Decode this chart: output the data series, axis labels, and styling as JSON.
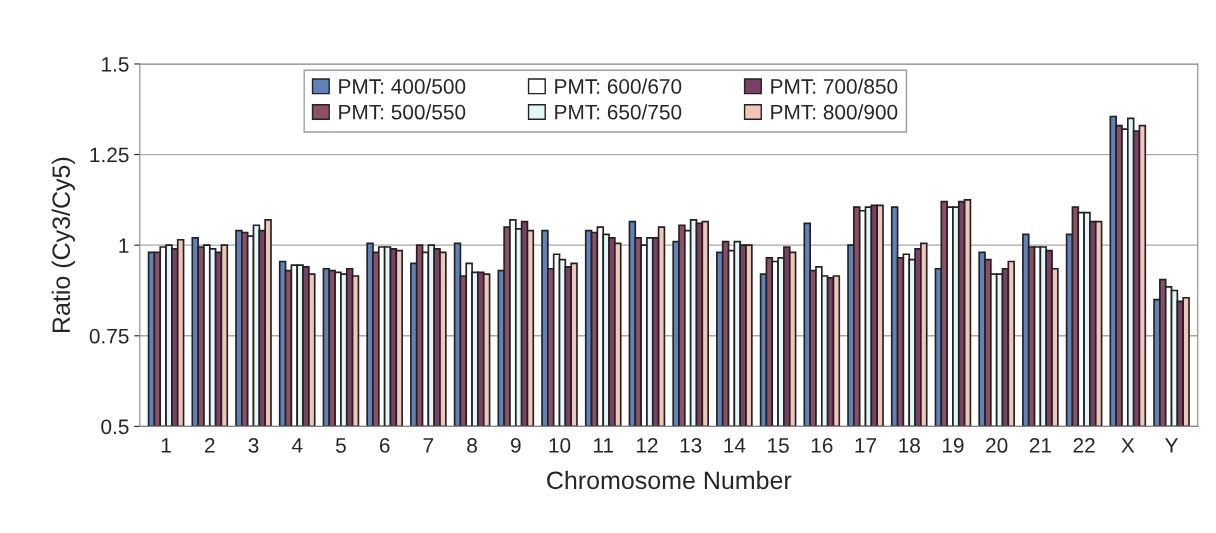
{
  "chart_data": {
    "type": "bar",
    "xlabel": "Chromosome Number",
    "ylabel": "Ratio (Cy3/Cy5)",
    "categories": [
      "1",
      "2",
      "3",
      "4",
      "5",
      "6",
      "7",
      "8",
      "9",
      "10",
      "11",
      "12",
      "13",
      "14",
      "15",
      "16",
      "17",
      "18",
      "19",
      "20",
      "21",
      "22",
      "X",
      "Y"
    ],
    "series": [
      {
        "name": "PMT: 400/500",
        "color": "#5f82bb",
        "values": [
          0.98,
          1.02,
          1.04,
          0.955,
          0.935,
          1.005,
          0.95,
          1.005,
          0.93,
          1.04,
          1.04,
          1.065,
          1.01,
          0.98,
          0.92,
          1.06,
          1.0,
          1.105,
          0.935,
          0.98,
          1.03,
          1.03,
          1.355,
          0.85
        ]
      },
      {
        "name": "PMT: 500/550",
        "color": "#8e4f65",
        "values": [
          0.98,
          0.995,
          1.035,
          0.93,
          0.93,
          0.98,
          1.0,
          0.915,
          1.05,
          0.935,
          1.035,
          1.02,
          1.055,
          1.01,
          0.965,
          0.93,
          1.105,
          0.965,
          1.12,
          0.96,
          0.995,
          1.105,
          1.33,
          0.905
        ]
      },
      {
        "name": "PMT: 600/670",
        "color": "#ffffff",
        "values": [
          0.995,
          1.0,
          1.025,
          0.945,
          0.925,
          0.995,
          0.98,
          0.95,
          1.07,
          0.975,
          1.05,
          1.0,
          1.04,
          0.985,
          0.955,
          0.94,
          1.095,
          0.975,
          1.105,
          0.92,
          0.995,
          1.09,
          1.32,
          0.885
        ]
      },
      {
        "name": "PMT: 650/750",
        "color": "#e2f8f8",
        "values": [
          1.0,
          0.99,
          1.055,
          0.945,
          0.92,
          0.995,
          1.0,
          0.925,
          1.045,
          0.96,
          1.03,
          1.02,
          1.07,
          1.01,
          0.965,
          0.915,
          1.105,
          0.96,
          1.105,
          0.92,
          0.995,
          1.09,
          1.35,
          0.875
        ]
      },
      {
        "name": "PMT: 700/850",
        "color": "#7c4064",
        "values": [
          0.99,
          0.98,
          1.04,
          0.94,
          0.935,
          0.99,
          0.99,
          0.925,
          1.065,
          0.94,
          1.02,
          1.02,
          1.06,
          1.0,
          0.995,
          0.91,
          1.11,
          0.99,
          1.12,
          0.935,
          0.985,
          1.065,
          1.315,
          0.845
        ]
      },
      {
        "name": "PMT: 800/900",
        "color": "#f1c6b8",
        "values": [
          1.015,
          1.0,
          1.07,
          0.92,
          0.915,
          0.985,
          0.98,
          0.92,
          1.04,
          0.95,
          1.005,
          1.05,
          1.065,
          1.0,
          0.98,
          0.915,
          1.11,
          1.005,
          1.125,
          0.955,
          0.935,
          1.065,
          1.33,
          0.855
        ]
      }
    ],
    "ylim": [
      0.5,
      1.5
    ],
    "yticks": [
      0.5,
      0.75,
      1,
      1.25,
      1.5
    ],
    "grid": "y",
    "legend": "top"
  }
}
